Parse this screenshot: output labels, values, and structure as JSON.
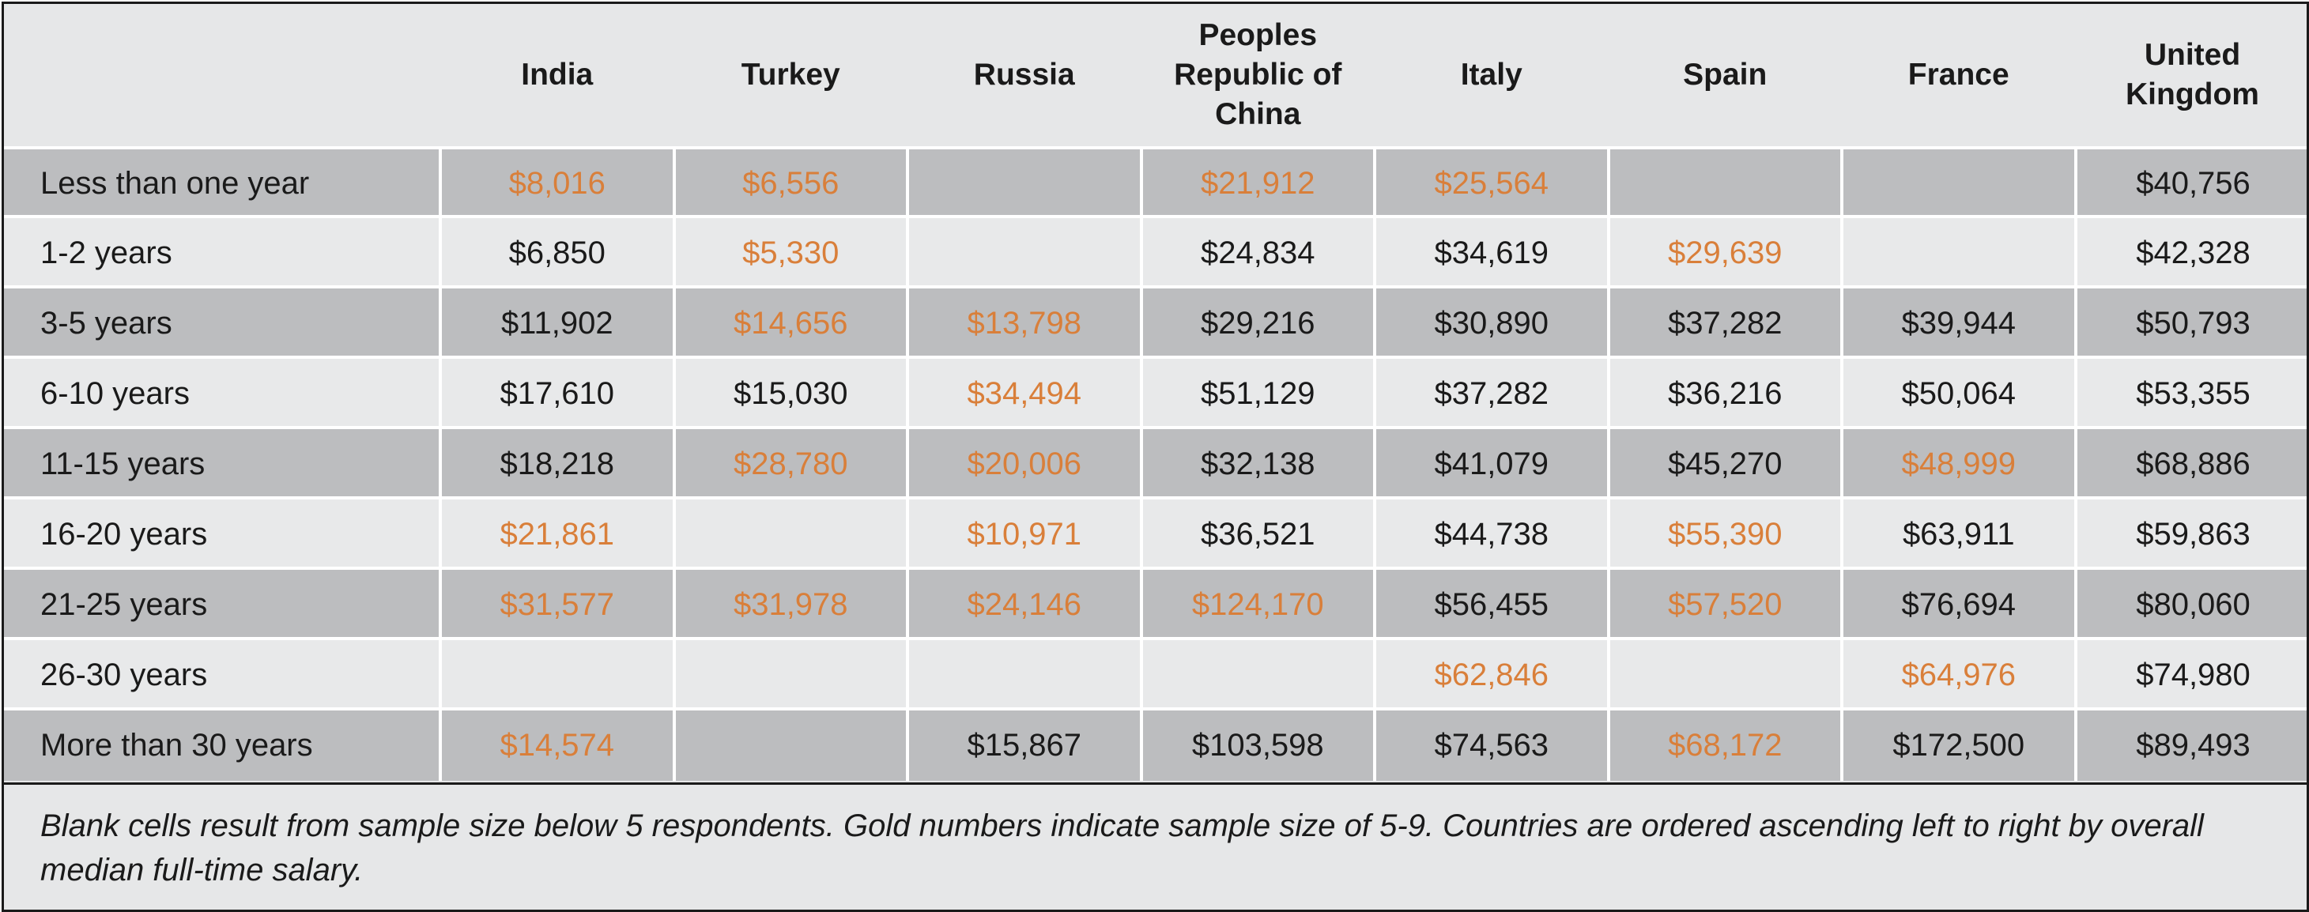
{
  "chart_data": {
    "type": "table",
    "title": "",
    "columns": [
      "India",
      "Turkey",
      "Russia",
      "Peoples Republic of China",
      "Italy",
      "Spain",
      "France",
      "United Kingdom"
    ],
    "column_header_lines": [
      [
        "India"
      ],
      [
        "Turkey"
      ],
      [
        "Russia"
      ],
      [
        "Peoples",
        "Republic of",
        "China"
      ],
      [
        "Italy"
      ],
      [
        "Spain"
      ],
      [
        "France"
      ],
      [
        "United",
        "Kingdom"
      ]
    ],
    "rows": [
      {
        "label": "Less than one year",
        "cells": [
          {
            "value": "$8,016",
            "gold": true
          },
          {
            "value": "$6,556",
            "gold": true
          },
          {
            "value": "",
            "gold": false
          },
          {
            "value": "$21,912",
            "gold": true
          },
          {
            "value": "$25,564",
            "gold": true
          },
          {
            "value": "",
            "gold": false
          },
          {
            "value": "",
            "gold": false
          },
          {
            "value": "$40,756",
            "gold": false
          }
        ]
      },
      {
        "label": "1-2 years",
        "cells": [
          {
            "value": "$6,850",
            "gold": false
          },
          {
            "value": "$5,330",
            "gold": true
          },
          {
            "value": "",
            "gold": false
          },
          {
            "value": "$24,834",
            "gold": false
          },
          {
            "value": "$34,619",
            "gold": false
          },
          {
            "value": "$29,639",
            "gold": true
          },
          {
            "value": "",
            "gold": false
          },
          {
            "value": "$42,328",
            "gold": false
          }
        ]
      },
      {
        "label": "3-5 years",
        "cells": [
          {
            "value": "$11,902",
            "gold": false
          },
          {
            "value": "$14,656",
            "gold": true
          },
          {
            "value": "$13,798",
            "gold": true
          },
          {
            "value": "$29,216",
            "gold": false
          },
          {
            "value": "$30,890",
            "gold": false
          },
          {
            "value": "$37,282",
            "gold": false
          },
          {
            "value": "$39,944",
            "gold": false
          },
          {
            "value": "$50,793",
            "gold": false
          }
        ]
      },
      {
        "label": "6-10 years",
        "cells": [
          {
            "value": "$17,610",
            "gold": false
          },
          {
            "value": "$15,030",
            "gold": false
          },
          {
            "value": "$34,494",
            "gold": true
          },
          {
            "value": "$51,129",
            "gold": false
          },
          {
            "value": "$37,282",
            "gold": false
          },
          {
            "value": "$36,216",
            "gold": false
          },
          {
            "value": "$50,064",
            "gold": false
          },
          {
            "value": "$53,355",
            "gold": false
          }
        ]
      },
      {
        "label": "11-15 years",
        "cells": [
          {
            "value": "$18,218",
            "gold": false
          },
          {
            "value": "$28,780",
            "gold": true
          },
          {
            "value": "$20,006",
            "gold": true
          },
          {
            "value": "$32,138",
            "gold": false
          },
          {
            "value": "$41,079",
            "gold": false
          },
          {
            "value": "$45,270",
            "gold": false
          },
          {
            "value": "$48,999",
            "gold": true
          },
          {
            "value": "$68,886",
            "gold": false
          }
        ]
      },
      {
        "label": "16-20 years",
        "cells": [
          {
            "value": "$21,861",
            "gold": true
          },
          {
            "value": "",
            "gold": false
          },
          {
            "value": "$10,971",
            "gold": true
          },
          {
            "value": "$36,521",
            "gold": false
          },
          {
            "value": "$44,738",
            "gold": false
          },
          {
            "value": "$55,390",
            "gold": true
          },
          {
            "value": "$63,911",
            "gold": false
          },
          {
            "value": "$59,863",
            "gold": false
          }
        ]
      },
      {
        "label": "21-25 years",
        "cells": [
          {
            "value": "$31,577",
            "gold": true
          },
          {
            "value": "$31,978",
            "gold": true
          },
          {
            "value": "$24,146",
            "gold": true
          },
          {
            "value": "$124,170",
            "gold": true
          },
          {
            "value": "$56,455",
            "gold": false
          },
          {
            "value": "$57,520",
            "gold": true
          },
          {
            "value": "$76,694",
            "gold": false
          },
          {
            "value": "$80,060",
            "gold": false
          }
        ]
      },
      {
        "label": "26-30 years",
        "cells": [
          {
            "value": "",
            "gold": false
          },
          {
            "value": "",
            "gold": false
          },
          {
            "value": "",
            "gold": false
          },
          {
            "value": "",
            "gold": false
          },
          {
            "value": "$62,846",
            "gold": true
          },
          {
            "value": "",
            "gold": false
          },
          {
            "value": "$64,976",
            "gold": true
          },
          {
            "value": "$74,980",
            "gold": false
          }
        ]
      },
      {
        "label": "More than 30 years",
        "cells": [
          {
            "value": "$14,574",
            "gold": true
          },
          {
            "value": "",
            "gold": false
          },
          {
            "value": "$15,867",
            "gold": false
          },
          {
            "value": "$103,598",
            "gold": false
          },
          {
            "value": "$74,563",
            "gold": false
          },
          {
            "value": "$68,172",
            "gold": true
          },
          {
            "value": "$172,500",
            "gold": false
          },
          {
            "value": "$89,493",
            "gold": false
          }
        ]
      }
    ],
    "footnote": "Blank cells result from sample size below 5 respondents. Gold numbers indicate sample size of 5-9. Countries are ordered ascending left to right by overall median full-time salary.",
    "colors": {
      "gold_text": "#d97f3a",
      "default_text": "#1a1a1a",
      "row_dark": "#bcbdbf",
      "row_light": "#e8e9ea",
      "header_bg": "#e6e7e8"
    }
  }
}
